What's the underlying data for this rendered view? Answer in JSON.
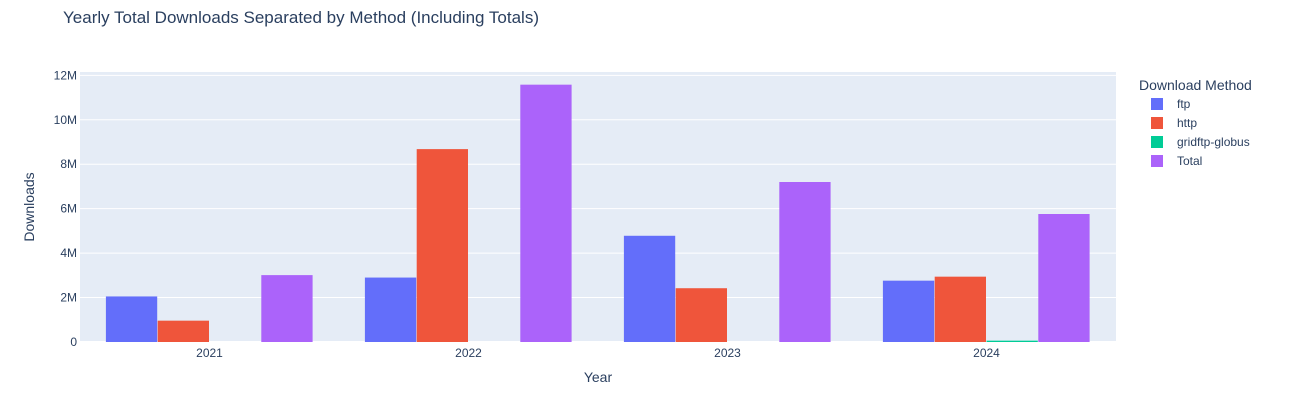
{
  "chart_data": {
    "type": "bar",
    "title": "Yearly Total Downloads Separated by Method (Including Totals)",
    "xlabel": "Year",
    "ylabel": "Downloads",
    "categories": [
      "2021",
      "2022",
      "2023",
      "2024"
    ],
    "series": [
      {
        "name": "ftp",
        "color": "#636EFA",
        "values": [
          2050000,
          2900000,
          4780000,
          2760000
        ]
      },
      {
        "name": "http",
        "color": "#EF553B",
        "values": [
          960000,
          8680000,
          2420000,
          2940000
        ]
      },
      {
        "name": "gridftp-globus",
        "color": "#00CC96",
        "values": [
          0,
          0,
          0,
          60000
        ]
      },
      {
        "name": "Total",
        "color": "#AB63FA",
        "values": [
          3010000,
          11580000,
          7200000,
          5760000
        ]
      }
    ],
    "ylim": [
      0,
      12150000
    ],
    "yticks": [
      0,
      2000000,
      4000000,
      6000000,
      8000000,
      10000000,
      12000000
    ],
    "ytick_labels": [
      "0",
      "2M",
      "4M",
      "6M",
      "8M",
      "10M",
      "12M"
    ],
    "grid": true,
    "legend": {
      "title": "Download Method",
      "position": "right"
    },
    "plot_background": "#E5ECF6",
    "text_color": "#2a3f5f"
  }
}
